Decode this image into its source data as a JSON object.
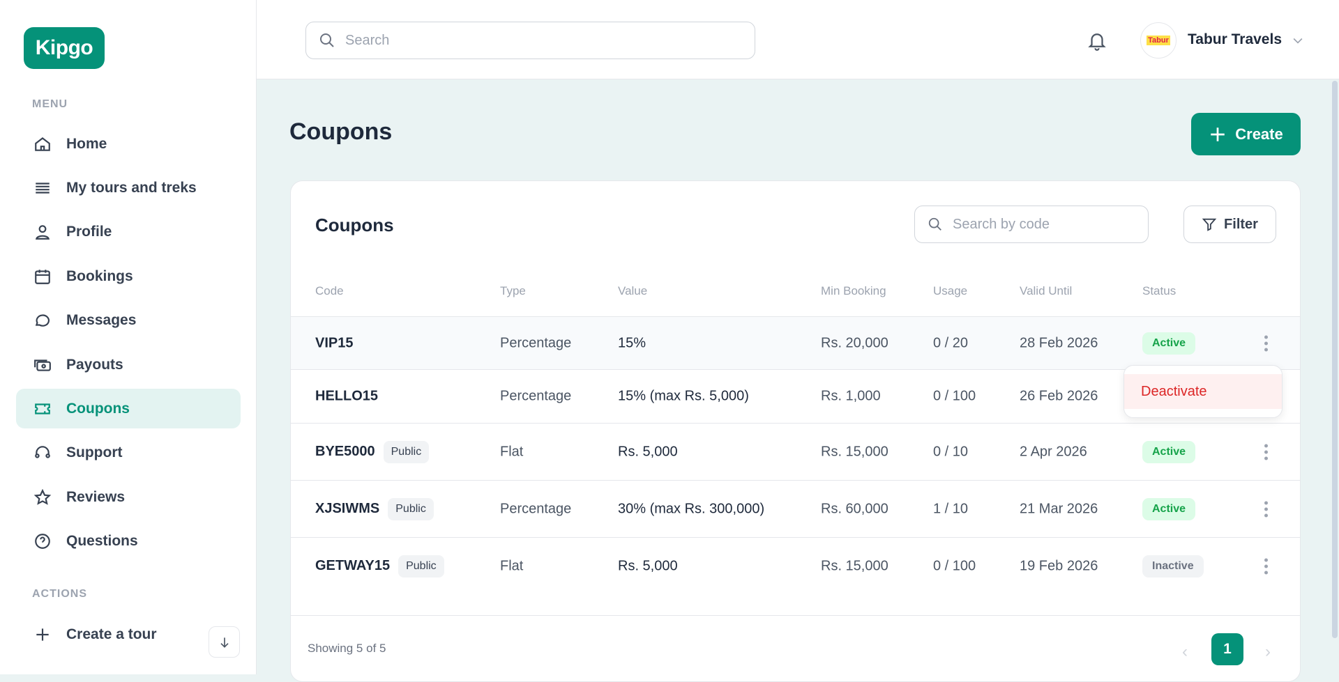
{
  "brand": {
    "logo": "Kipgo",
    "color": "#059279"
  },
  "sidebar": {
    "menu_label": "MENU",
    "actions_label": "ACTIONS",
    "items": [
      {
        "label": "Home",
        "icon": "home-icon"
      },
      {
        "label": "My tours and treks",
        "icon": "list-icon"
      },
      {
        "label": "Profile",
        "icon": "user-icon"
      },
      {
        "label": "Bookings",
        "icon": "calendar-icon"
      },
      {
        "label": "Messages",
        "icon": "chat-icon"
      },
      {
        "label": "Payouts",
        "icon": "cash-icon"
      },
      {
        "label": "Coupons",
        "icon": "ticket-icon",
        "active": true
      },
      {
        "label": "Support",
        "icon": "headset-icon"
      },
      {
        "label": "Reviews",
        "icon": "star-icon"
      },
      {
        "label": "Questions",
        "icon": "question-icon"
      }
    ],
    "actions": [
      {
        "label": "Create a tour",
        "icon": "plus-icon"
      }
    ]
  },
  "header": {
    "search_placeholder": "Search",
    "user": "Tabur Travels",
    "avatar_text": "Tabur"
  },
  "page": {
    "title": "Coupons",
    "create_label": "Create"
  },
  "card": {
    "title": "Coupons",
    "search_placeholder": "Search by code",
    "filter_label": "Filter",
    "columns": [
      "Code",
      "Type",
      "Value",
      "Min Booking",
      "Usage",
      "Valid Until",
      "Status"
    ],
    "rows": [
      {
        "code": "VIP15",
        "public": "",
        "type": "Percentage",
        "value": "15%",
        "min": "Rs. 20,000",
        "usage": "0 / 20",
        "valid": "28 Feb 2026",
        "status": "Active"
      },
      {
        "code": "HELLO15",
        "public": "",
        "type": "Percentage",
        "value": "15% (max Rs. 5,000)",
        "min": "Rs. 1,000",
        "usage": "0 / 100",
        "valid": "26 Feb 2026",
        "status": ""
      },
      {
        "code": "BYE5000",
        "public": "Public",
        "type": "Flat",
        "value": "Rs. 5,000",
        "min": "Rs. 15,000",
        "usage": "0 / 10",
        "valid": "2 Apr 2026",
        "status": "Active"
      },
      {
        "code": "XJSIWMS",
        "public": "Public",
        "type": "Percentage",
        "value": "30% (max Rs. 300,000)",
        "min": "Rs. 60,000",
        "usage": "1 / 10",
        "valid": "21 Mar 2026",
        "status": "Active"
      },
      {
        "code": "GETWAY15",
        "public": "Public",
        "type": "Flat",
        "value": "Rs. 5,000",
        "min": "Rs. 15,000",
        "usage": "0 / 100",
        "valid": "19 Feb 2026",
        "status": "Inactive"
      }
    ],
    "menu_item": "Deactivate",
    "showing": "Showing 5 of 5",
    "page": "1"
  }
}
